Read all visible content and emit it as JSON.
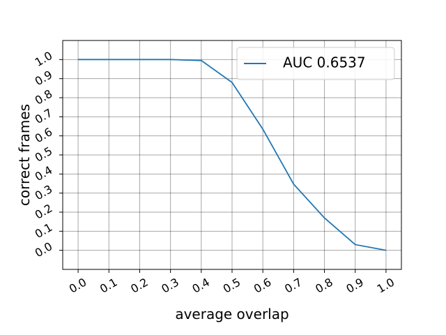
{
  "chart_data": {
    "type": "line",
    "x_label": "average overlap",
    "y_label": "correct frames",
    "x": [
      0,
      0.1,
      0.2,
      0.3,
      0.4,
      0.5,
      0.6,
      0.7,
      0.8,
      0.9,
      1
    ],
    "series": [
      {
        "name": "AUC 0.6537",
        "color": "#1f77b4",
        "values": [
          1,
          1,
          1,
          1,
          0.995,
          0.88,
          0.635,
          0.347,
          0.17,
          0.03,
          0
        ]
      }
    ],
    "xlim": [
      -0.05,
      1.05
    ],
    "ylim": [
      -0.1,
      1.1
    ],
    "xticks": [
      {
        "value": 0,
        "label": "0.0"
      },
      0.1,
      0.2,
      0.3,
      0.4,
      0.5,
      0.6,
      0.7,
      0.8,
      0.9,
      {
        "value": 1,
        "label": "1.0"
      }
    ],
    "yticks": [
      {
        "value": 0,
        "label": "0.0"
      },
      0.1,
      0.2,
      0.3,
      0.4,
      0.5,
      0.6,
      0.7,
      0.8,
      0.9,
      {
        "value": 1,
        "label": "1.0"
      }
    ],
    "grid": true,
    "legend": "upper-right"
  }
}
